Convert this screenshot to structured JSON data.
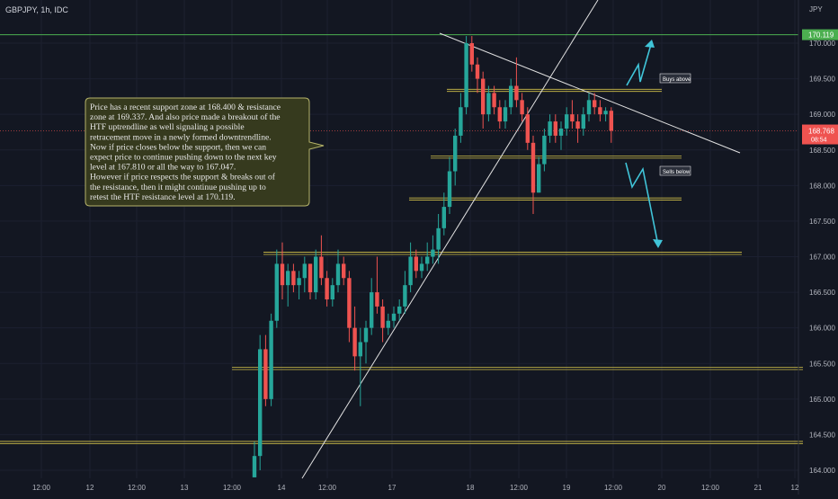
{
  "header": {
    "symbol_label": "GBPJPY, 1h, IDC"
  },
  "price_axis": {
    "currency": "JPY",
    "ticks": [
      "170.000",
      "169.500",
      "169.000",
      "168.500",
      "168.000",
      "167.500",
      "167.000",
      "166.500",
      "166.000",
      "165.500",
      "165.000",
      "164.500",
      "164.000"
    ]
  },
  "time_axis": {
    "ticks": [
      "12:00",
      "12",
      "12:00",
      "13",
      "12:00",
      "14",
      "12:00",
      "17",
      "18",
      "12:00",
      "19",
      "12:00",
      "20",
      "12:00",
      "21",
      "12"
    ]
  },
  "tags": {
    "resistance_price": "170.119",
    "current_price": "168.768",
    "countdown": "08:54",
    "buys_label": "Buys above",
    "sells_label": "Sells below"
  },
  "annotation": {
    "lines": [
      "Price has a recent support zone at 168.400 & resistance",
      "zone at 169.337. And also price made a breakout of the",
      "HTF uptrendline as well signaling a possible",
      "retracement move in a newly formed downtrendline.",
      "Now if price closes below the support, then we can",
      "expect price to continue pushing down to the next key",
      "level at 167.810 or all the way to 167.047.",
      "However if price respects the support & breaks out of",
      "the resistance, then it might continue pushing up to",
      "retest the HTF resistance level at 170.119."
    ]
  },
  "colors": {
    "background": "#131722",
    "bull": "#26a69a",
    "bear": "#ef5350",
    "level": "#d4c34a",
    "resistance_line": "#4caf50",
    "arrow": "#40c4d8",
    "trendline": "#e0e0e0"
  },
  "chart_data": {
    "type": "candlestick",
    "symbol": "GBPJPY",
    "timeframe": "1h",
    "ylim": [
      163.9,
      170.5
    ],
    "key_levels": [
      170.119,
      169.337,
      168.4,
      167.81,
      167.047,
      165.43,
      164.39
    ],
    "last_price": 168.768,
    "candles": [
      {
        "o": 163.9,
        "h": 164.4,
        "l": 163.9,
        "c": 164.2
      },
      {
        "o": 164.2,
        "h": 165.9,
        "l": 164.0,
        "c": 165.7
      },
      {
        "o": 165.7,
        "h": 165.9,
        "l": 164.9,
        "c": 165.0
      },
      {
        "o": 165.0,
        "h": 166.2,
        "l": 164.9,
        "c": 166.1
      },
      {
        "o": 166.1,
        "h": 167.1,
        "l": 166.0,
        "c": 166.9
      },
      {
        "o": 166.9,
        "h": 167.2,
        "l": 166.4,
        "c": 166.6
      },
      {
        "o": 166.6,
        "h": 166.9,
        "l": 166.3,
        "c": 166.8
      },
      {
        "o": 166.8,
        "h": 166.9,
        "l": 166.5,
        "c": 166.6
      },
      {
        "o": 166.6,
        "h": 166.8,
        "l": 166.4,
        "c": 166.7
      },
      {
        "o": 166.7,
        "h": 167.0,
        "l": 166.5,
        "c": 166.9
      },
      {
        "o": 166.9,
        "h": 166.9,
        "l": 166.4,
        "c": 166.5
      },
      {
        "o": 166.5,
        "h": 167.1,
        "l": 166.4,
        "c": 167.0
      },
      {
        "o": 167.0,
        "h": 167.3,
        "l": 166.6,
        "c": 166.7
      },
      {
        "o": 166.7,
        "h": 166.8,
        "l": 166.3,
        "c": 166.4
      },
      {
        "o": 166.4,
        "h": 166.7,
        "l": 166.3,
        "c": 166.6
      },
      {
        "o": 166.6,
        "h": 167.1,
        "l": 166.5,
        "c": 166.9
      },
      {
        "o": 166.9,
        "h": 167.0,
        "l": 166.6,
        "c": 166.7
      },
      {
        "o": 166.7,
        "h": 166.8,
        "l": 165.8,
        "c": 166.0
      },
      {
        "o": 166.0,
        "h": 166.3,
        "l": 165.4,
        "c": 165.6
      },
      {
        "o": 165.6,
        "h": 166.0,
        "l": 164.9,
        "c": 165.8
      },
      {
        "o": 165.8,
        "h": 166.1,
        "l": 165.5,
        "c": 166.0
      },
      {
        "o": 166.0,
        "h": 166.7,
        "l": 165.9,
        "c": 166.5
      },
      {
        "o": 166.5,
        "h": 167.0,
        "l": 166.2,
        "c": 166.3
      },
      {
        "o": 166.3,
        "h": 166.4,
        "l": 165.8,
        "c": 166.0
      },
      {
        "o": 166.0,
        "h": 166.2,
        "l": 165.9,
        "c": 166.1
      },
      {
        "o": 166.1,
        "h": 166.3,
        "l": 166.0,
        "c": 166.2
      },
      {
        "o": 166.2,
        "h": 166.4,
        "l": 166.1,
        "c": 166.3
      },
      {
        "o": 166.3,
        "h": 166.8,
        "l": 166.2,
        "c": 166.6
      },
      {
        "o": 166.6,
        "h": 167.2,
        "l": 166.5,
        "c": 167.0
      },
      {
        "o": 167.0,
        "h": 167.1,
        "l": 166.7,
        "c": 166.8
      },
      {
        "o": 166.8,
        "h": 167.0,
        "l": 166.7,
        "c": 166.9
      },
      {
        "o": 166.9,
        "h": 167.2,
        "l": 166.8,
        "c": 167.0
      },
      {
        "o": 167.0,
        "h": 167.3,
        "l": 166.9,
        "c": 167.1
      },
      {
        "o": 167.1,
        "h": 167.6,
        "l": 166.9,
        "c": 167.4
      },
      {
        "o": 167.4,
        "h": 167.9,
        "l": 167.3,
        "c": 167.7
      },
      {
        "o": 167.7,
        "h": 168.4,
        "l": 167.6,
        "c": 168.2
      },
      {
        "o": 168.2,
        "h": 168.8,
        "l": 168.0,
        "c": 168.7
      },
      {
        "o": 168.7,
        "h": 169.3,
        "l": 168.6,
        "c": 169.1
      },
      {
        "o": 169.1,
        "h": 170.1,
        "l": 169.0,
        "c": 170.0
      },
      {
        "o": 170.0,
        "h": 170.1,
        "l": 169.6,
        "c": 169.7
      },
      {
        "o": 169.7,
        "h": 169.8,
        "l": 169.3,
        "c": 169.5
      },
      {
        "o": 169.5,
        "h": 169.6,
        "l": 168.8,
        "c": 169.0
      },
      {
        "o": 169.0,
        "h": 169.4,
        "l": 168.9,
        "c": 169.3
      },
      {
        "o": 169.3,
        "h": 169.4,
        "l": 169.0,
        "c": 169.1
      },
      {
        "o": 169.1,
        "h": 169.2,
        "l": 168.8,
        "c": 168.9
      },
      {
        "o": 168.9,
        "h": 169.2,
        "l": 168.8,
        "c": 169.1
      },
      {
        "o": 169.1,
        "h": 169.5,
        "l": 169.0,
        "c": 169.4
      },
      {
        "o": 169.4,
        "h": 169.8,
        "l": 169.1,
        "c": 169.2
      },
      {
        "o": 169.2,
        "h": 169.3,
        "l": 168.9,
        "c": 169.0
      },
      {
        "o": 169.0,
        "h": 169.1,
        "l": 168.5,
        "c": 168.6
      },
      {
        "o": 168.6,
        "h": 168.7,
        "l": 167.6,
        "c": 167.9
      },
      {
        "o": 167.9,
        "h": 168.4,
        "l": 167.9,
        "c": 168.3
      },
      {
        "o": 168.3,
        "h": 168.8,
        "l": 168.2,
        "c": 168.7
      },
      {
        "o": 168.7,
        "h": 169.0,
        "l": 168.6,
        "c": 168.9
      },
      {
        "o": 168.9,
        "h": 169.0,
        "l": 168.6,
        "c": 168.7
      },
      {
        "o": 168.7,
        "h": 168.9,
        "l": 168.5,
        "c": 168.8
      },
      {
        "o": 168.8,
        "h": 169.1,
        "l": 168.7,
        "c": 169.0
      },
      {
        "o": 169.0,
        "h": 169.2,
        "l": 168.8,
        "c": 168.9
      },
      {
        "o": 168.9,
        "h": 169.0,
        "l": 168.6,
        "c": 168.8
      },
      {
        "o": 168.8,
        "h": 169.1,
        "l": 168.7,
        "c": 169.0
      },
      {
        "o": 169.0,
        "h": 169.3,
        "l": 168.9,
        "c": 169.2
      },
      {
        "o": 169.2,
        "h": 169.3,
        "l": 169.0,
        "c": 169.1
      },
      {
        "o": 169.1,
        "h": 169.2,
        "l": 168.9,
        "c": 169.0
      },
      {
        "o": 169.0,
        "h": 169.1,
        "l": 168.9,
        "c": 169.05
      },
      {
        "o": 169.05,
        "h": 169.1,
        "l": 168.6,
        "c": 168.77
      }
    ],
    "trendlines": [
      {
        "name": "HTF uptrendline",
        "from": [
          0,
          163.9
        ],
        "to": [
          44,
          170.5
        ]
      },
      {
        "name": "downtrendline",
        "from": [
          36,
          170.25
        ],
        "to": [
          69,
          168.5
        ]
      }
    ]
  }
}
